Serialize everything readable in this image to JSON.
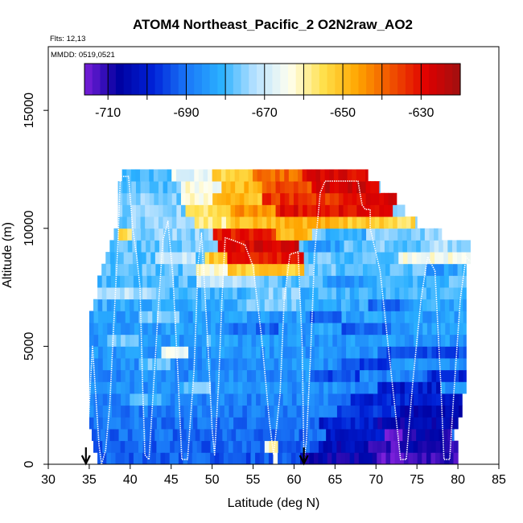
{
  "chart_data": {
    "type": "heatmap",
    "title": "ATOM4 Northeast_Pacific_2 O2N2raw_AO2",
    "flights_label": "Flts: 12,13",
    "dates_label": "MMDD: 0519,0521",
    "xlabel": "Latitude (deg N)",
    "ylabel": "Altitude (m)",
    "xlim": [
      30,
      85
    ],
    "ylim": [
      0,
      17700
    ],
    "xticks": [
      30,
      35,
      40,
      45,
      50,
      55,
      60,
      65,
      70,
      75,
      80,
      85
    ],
    "yticks": [
      0,
      5000,
      10000,
      15000
    ],
    "colorbar": {
      "min": -716,
      "max": -620,
      "ticks": [
        -710,
        -690,
        -670,
        -650,
        -630
      ],
      "colors": [
        "#7a1fd9",
        "#0000a0",
        "#0022d8",
        "#1a78f8",
        "#2ab0ff",
        "#b8e2ff",
        "#fffff0",
        "#ffe04a",
        "#ffa500",
        "#f05000",
        "#e00000",
        "#a01010"
      ]
    },
    "markers": [
      {
        "label": "flight-start-arrow",
        "lat": 34.6
      },
      {
        "label": "flight-turn-arrow",
        "lat": 61.2
      }
    ],
    "bin_height_m": 500,
    "bands": [
      {
        "alt": 250,
        "from": 36,
        "to": 80,
        "value": -693,
        "anomalies": [
          {
            "from": 57.2,
            "to": 58.2,
            "value": -660
          },
          {
            "from": 61,
            "to": 70,
            "value": -707
          },
          {
            "from": 70,
            "to": 75,
            "value": -713
          },
          {
            "from": 75,
            "to": 80,
            "value": -710
          }
        ]
      },
      {
        "alt": 750,
        "from": 35.5,
        "to": 80,
        "value": -692,
        "anomalies": [
          {
            "from": 56.5,
            "to": 58,
            "value": -662
          },
          {
            "from": 63,
            "to": 69,
            "value": -705
          },
          {
            "from": 69,
            "to": 74,
            "value": -712
          },
          {
            "from": 74,
            "to": 80,
            "value": -708
          }
        ]
      },
      {
        "alt": 1250,
        "from": 35.3,
        "to": 79.5,
        "value": -691,
        "anomalies": [
          {
            "from": 64,
            "to": 71,
            "value": -702
          },
          {
            "from": 71,
            "to": 73.5,
            "value": -716
          },
          {
            "from": 73.5,
            "to": 79.5,
            "value": -707
          }
        ]
      },
      {
        "alt": 1750,
        "from": 35,
        "to": 80,
        "value": -690,
        "anomalies": [
          {
            "from": 63,
            "to": 70,
            "value": -700
          },
          {
            "from": 70,
            "to": 80,
            "value": -706
          }
        ]
      },
      {
        "alt": 2250,
        "from": 35,
        "to": 80.5,
        "value": -689,
        "anomalies": [
          {
            "from": 65,
            "to": 73,
            "value": -698
          },
          {
            "from": 73,
            "to": 80.5,
            "value": -704
          }
        ]
      },
      {
        "alt": 2750,
        "from": 35,
        "to": 80.5,
        "value": -688,
        "anomalies": [
          {
            "from": 40,
            "to": 44,
            "value": -680
          },
          {
            "from": 67,
            "to": 80.5,
            "value": -700
          }
        ]
      },
      {
        "alt": 3250,
        "from": 35,
        "to": 81,
        "value": -686,
        "anomalies": [
          {
            "from": 46,
            "to": 50,
            "value": -678
          },
          {
            "from": 70,
            "to": 78,
            "value": -701
          }
        ]
      },
      {
        "alt": 3750,
        "from": 35,
        "to": 81,
        "value": -687,
        "anomalies": [
          {
            "from": 62,
            "to": 68,
            "value": -695
          },
          {
            "from": 76,
            "to": 81,
            "value": -699
          }
        ]
      },
      {
        "alt": 4250,
        "from": 35,
        "to": 81,
        "value": -686,
        "anomalies": [
          {
            "from": 41,
            "to": 45,
            "value": -678
          },
          {
            "from": 66,
            "to": 72,
            "value": -696
          }
        ]
      },
      {
        "alt": 4750,
        "from": 35,
        "to": 81,
        "value": -685,
        "anomalies": [
          {
            "from": 44,
            "to": 47,
            "value": -666
          },
          {
            "from": 70,
            "to": 81,
            "value": -694
          }
        ]
      },
      {
        "alt": 5250,
        "from": 35,
        "to": 81,
        "value": -685,
        "anomalies": [
          {
            "from": 37,
            "to": 41,
            "value": -677
          },
          {
            "from": 49,
            "to": 53,
            "value": -680
          }
        ]
      },
      {
        "alt": 5750,
        "from": 35,
        "to": 81,
        "value": -684,
        "anomalies": [
          {
            "from": 52,
            "to": 58,
            "value": -691
          },
          {
            "from": 66,
            "to": 72,
            "value": -692
          }
        ]
      },
      {
        "alt": 6250,
        "from": 35,
        "to": 81,
        "value": -684,
        "anomalies": [
          {
            "from": 41,
            "to": 46,
            "value": -677
          },
          {
            "from": 62,
            "to": 66,
            "value": -693
          }
        ]
      },
      {
        "alt": 6750,
        "from": 35.5,
        "to": 81,
        "value": -682,
        "anomalies": [
          {
            "from": 53,
            "to": 60,
            "value": -676
          },
          {
            "from": 69,
            "to": 74,
            "value": -690
          }
        ]
      },
      {
        "alt": 7250,
        "from": 36,
        "to": 81,
        "value": -680,
        "anomalies": [
          {
            "from": 36,
            "to": 43,
            "value": -672
          },
          {
            "from": 55,
            "to": 61,
            "value": -675
          }
        ]
      },
      {
        "alt": 7750,
        "from": 36,
        "to": 81,
        "value": -679,
        "anomalies": [
          {
            "from": 48,
            "to": 56,
            "value": -672
          },
          {
            "from": 64,
            "to": 70,
            "value": -686
          }
        ]
      },
      {
        "alt": 8250,
        "from": 36.5,
        "to": 81,
        "value": -678,
        "anomalies": [
          {
            "from": 48,
            "to": 52,
            "value": -663
          },
          {
            "from": 52,
            "to": 61,
            "value": -652
          },
          {
            "from": 76,
            "to": 80,
            "value": -684
          }
        ]
      },
      {
        "alt": 8750,
        "from": 37,
        "to": 81.5,
        "value": -678,
        "anomalies": [
          {
            "from": 43,
            "to": 48,
            "value": -670
          },
          {
            "from": 49,
            "to": 52,
            "value": -652
          },
          {
            "from": 52,
            "to": 61,
            "value": -632
          },
          {
            "from": 73,
            "to": 81.5,
            "value": -664
          }
        ]
      },
      {
        "alt": 9250,
        "from": 37.5,
        "to": 81.5,
        "value": -677,
        "anomalies": [
          {
            "from": 50.5,
            "to": 60.5,
            "value": -628
          },
          {
            "from": 61,
            "to": 66,
            "value": -684
          },
          {
            "from": 76,
            "to": 81.5,
            "value": -673
          }
        ]
      },
      {
        "alt": 9750,
        "from": 38,
        "to": 78,
        "value": -675,
        "anomalies": [
          {
            "from": 38.5,
            "to": 40,
            "value": -655
          },
          {
            "from": 50,
            "to": 58,
            "value": -632
          },
          {
            "from": 58,
            "to": 62,
            "value": -650
          },
          {
            "from": 64,
            "to": 69,
            "value": -681
          }
        ]
      },
      {
        "alt": 10250,
        "from": 38.5,
        "to": 75,
        "value": -676,
        "anomalies": [
          {
            "from": 48,
            "to": 52,
            "value": -658
          },
          {
            "from": 52,
            "to": 58,
            "value": -650
          },
          {
            "from": 58,
            "to": 66,
            "value": -648
          },
          {
            "from": 66,
            "to": 71.5,
            "value": -652
          },
          {
            "from": 71.5,
            "to": 75,
            "value": -655
          }
        ]
      },
      {
        "alt": 10750,
        "from": 38.5,
        "to": 73.5,
        "value": -675,
        "anomalies": [
          {
            "from": 47,
            "to": 52,
            "value": -656
          },
          {
            "from": 52,
            "to": 58,
            "value": -645
          },
          {
            "from": 58,
            "to": 72,
            "value": -630
          }
        ]
      },
      {
        "alt": 11250,
        "from": 38.5,
        "to": 72.5,
        "value": -676,
        "anomalies": [
          {
            "from": 46,
            "to": 50,
            "value": -662
          },
          {
            "from": 50,
            "to": 56,
            "value": -650
          },
          {
            "from": 56,
            "to": 66,
            "value": -634
          },
          {
            "from": 66,
            "to": 72.5,
            "value": -628
          }
        ]
      },
      {
        "alt": 11750,
        "from": 38.5,
        "to": 70.5,
        "value": -678,
        "anomalies": [
          {
            "from": 46,
            "to": 51,
            "value": -664
          },
          {
            "from": 51,
            "to": 56,
            "value": -650
          },
          {
            "from": 56,
            "to": 62,
            "value": -637
          },
          {
            "from": 62,
            "to": 70.5,
            "value": -627
          }
        ]
      },
      {
        "alt": 12250,
        "from": 39,
        "to": 69,
        "value": -679,
        "anomalies": [
          {
            "from": 45,
            "to": 50,
            "value": -667
          },
          {
            "from": 50,
            "to": 55,
            "value": -654
          },
          {
            "from": 55,
            "to": 61,
            "value": -640
          },
          {
            "from": 61,
            "to": 69,
            "value": -629
          }
        ]
      }
    ],
    "flight_track": [
      [
        34.8,
        1200
      ],
      [
        35.0,
        2400
      ],
      [
        35.2,
        3800
      ],
      [
        35.4,
        5000
      ],
      [
        36.2,
        800
      ],
      [
        36.5,
        0
      ],
      [
        37.0,
        600
      ],
      [
        37.5,
        2500
      ],
      [
        38.0,
        6000
      ],
      [
        38.5,
        9300
      ],
      [
        38.8,
        12200
      ],
      [
        39.8,
        12200
      ],
      [
        40.3,
        10000
      ],
      [
        40.8,
        8800
      ],
      [
        41.2,
        7500
      ],
      [
        41.5,
        3500
      ],
      [
        41.8,
        400
      ],
      [
        42.3,
        200
      ],
      [
        42.8,
        3000
      ],
      [
        43.5,
        7000
      ],
      [
        44.0,
        9500
      ],
      [
        44.6,
        10300
      ],
      [
        45.2,
        8000
      ],
      [
        45.8,
        4000
      ],
      [
        46.3,
        200
      ],
      [
        47.0,
        200
      ],
      [
        47.8,
        4000
      ],
      [
        48.3,
        8500
      ],
      [
        48.7,
        9800
      ],
      [
        49.5,
        5000
      ],
      [
        50.0,
        1500
      ],
      [
        50.3,
        400
      ],
      [
        50.8,
        3500
      ],
      [
        51.2,
        7000
      ],
      [
        51.6,
        9600
      ],
      [
        52.5,
        9500
      ],
      [
        54.0,
        9300
      ],
      [
        55.0,
        8400
      ],
      [
        56.0,
        5500
      ],
      [
        57.0,
        1800
      ],
      [
        57.5,
        400
      ],
      [
        58.3,
        3000
      ],
      [
        58.8,
        7000
      ],
      [
        59.5,
        8900
      ],
      [
        60.5,
        9000
      ],
      [
        61.0,
        5000
      ],
      [
        61.2,
        200
      ],
      [
        61.5,
        900
      ],
      [
        62.0,
        4500
      ],
      [
        62.5,
        8900
      ],
      [
        63.2,
        11500
      ],
      [
        63.8,
        12000
      ],
      [
        66.0,
        12000
      ],
      [
        67.8,
        12000
      ],
      [
        68.3,
        11000
      ],
      [
        68.7,
        10800
      ],
      [
        69.3,
        10800
      ],
      [
        69.3,
        10000
      ],
      [
        70.5,
        8200
      ],
      [
        71.5,
        5000
      ],
      [
        72.6,
        1500
      ],
      [
        73.0,
        200
      ],
      [
        73.7,
        200
      ],
      [
        74.5,
        3500
      ],
      [
        75.5,
        7000
      ],
      [
        76.3,
        8800
      ],
      [
        77.2,
        8200
      ],
      [
        77.9,
        3500
      ],
      [
        78.3,
        200
      ],
      [
        79.0,
        200
      ],
      [
        79.5,
        3000
      ],
      [
        80.3,
        7000
      ],
      [
        81.0,
        8800
      ],
      [
        81.5,
        8600
      ]
    ]
  }
}
